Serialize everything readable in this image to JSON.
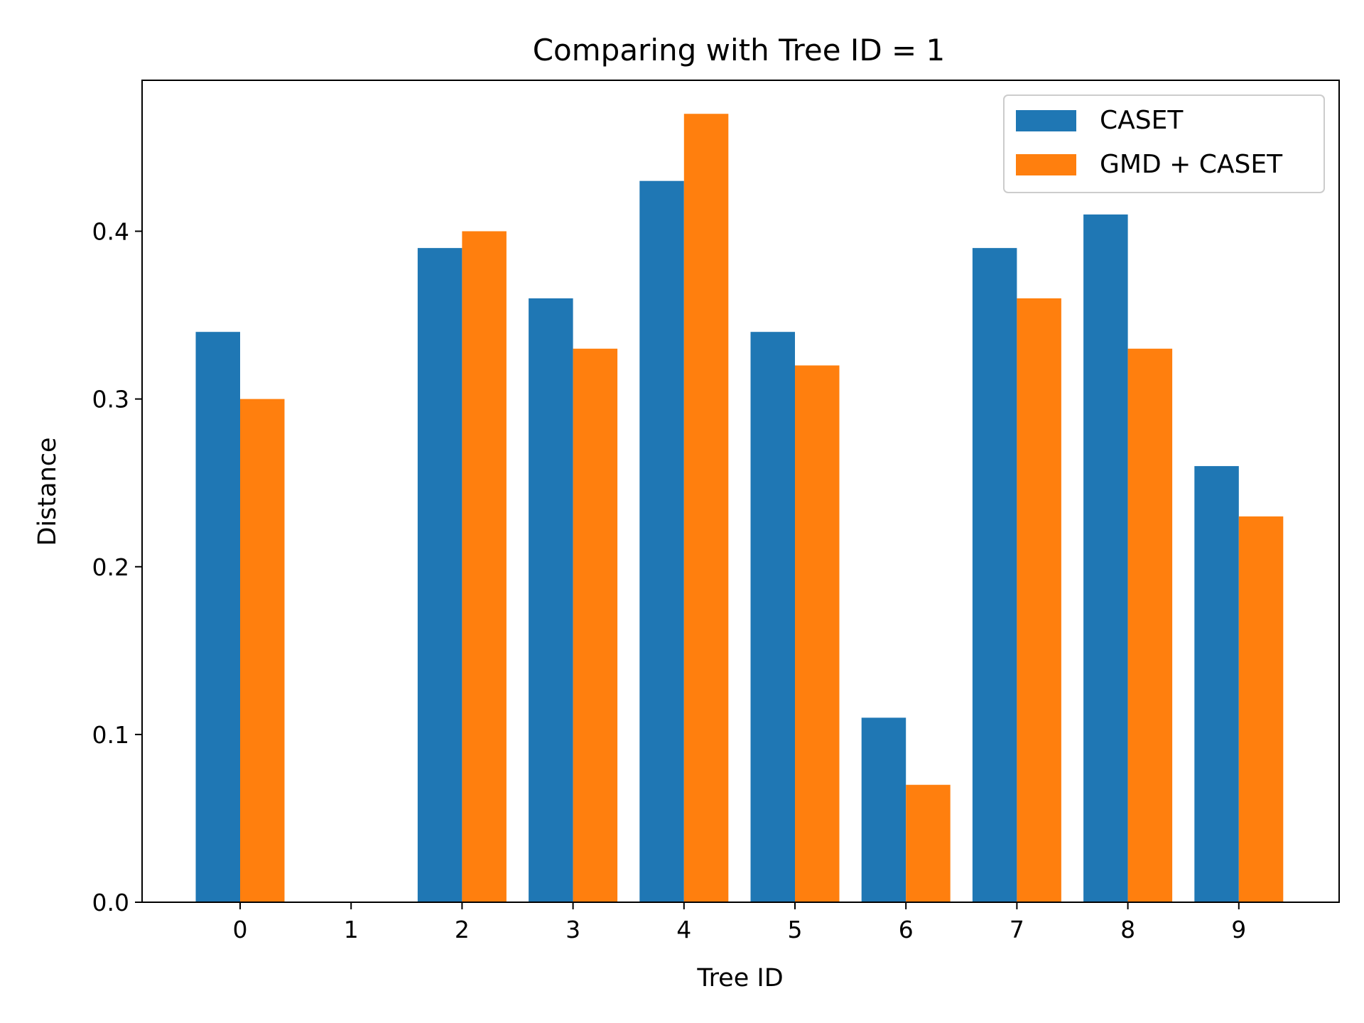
{
  "chart_data": {
    "type": "bar",
    "title": "Comparing with Tree ID = 1",
    "xlabel": "Tree ID",
    "ylabel": "Distance",
    "categories": [
      "0",
      "1",
      "2",
      "3",
      "4",
      "5",
      "6",
      "7",
      "8",
      "9"
    ],
    "series": [
      {
        "name": "CASET",
        "color": "#1f77b4",
        "values": [
          0.34,
          0.0,
          0.39,
          0.36,
          0.43,
          0.34,
          0.11,
          0.39,
          0.41,
          0.26
        ]
      },
      {
        "name": "GMD + CASET",
        "color": "#ff7f0e",
        "values": [
          0.3,
          0.0,
          0.4,
          0.33,
          0.47,
          0.32,
          0.07,
          0.36,
          0.33,
          0.23
        ]
      }
    ],
    "ylim": [
      0,
      0.49
    ],
    "yticks": [
      "0.0",
      "0.1",
      "0.2",
      "0.3",
      "0.4"
    ],
    "grid": false,
    "legend_position": "top-right"
  }
}
